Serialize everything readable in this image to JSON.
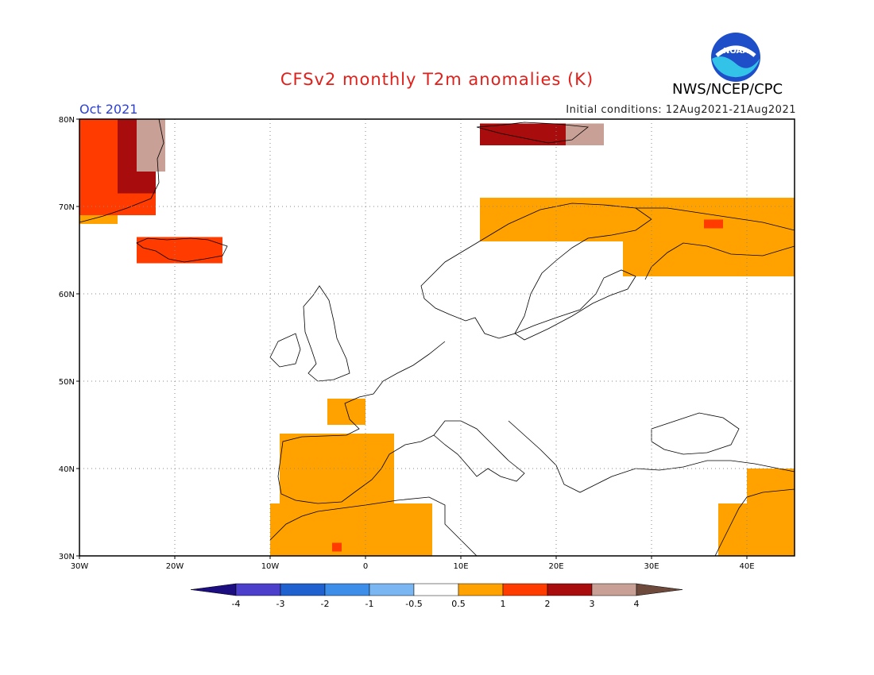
{
  "header": {
    "title": "CFSv2 monthly T2m anomalies (K)",
    "agency": "NWS/NCEP/CPC",
    "logo_text": "NOAA",
    "month": "Oct 2021",
    "initial_conditions": "Initial conditions: 12Aug2021-21Aug2021"
  },
  "map": {
    "lon_range": [
      -30,
      45
    ],
    "lat_range": [
      30,
      80
    ],
    "lon_ticks": [
      {
        "value": -30,
        "label": "30W"
      },
      {
        "value": -20,
        "label": "20W"
      },
      {
        "value": -10,
        "label": "10W"
      },
      {
        "value": 0,
        "label": "0"
      },
      {
        "value": 10,
        "label": "10E"
      },
      {
        "value": 20,
        "label": "20E"
      },
      {
        "value": 30,
        "label": "30E"
      },
      {
        "value": 40,
        "label": "40E"
      }
    ],
    "lat_ticks": [
      {
        "value": 30,
        "label": "30N"
      },
      {
        "value": 40,
        "label": "40N"
      },
      {
        "value": 50,
        "label": "50N"
      },
      {
        "value": 60,
        "label": "60N"
      },
      {
        "value": 70,
        "label": "70N"
      },
      {
        "value": 80,
        "label": "80N"
      }
    ],
    "grid": true,
    "anomaly_regions": [
      {
        "class": "0.5-1",
        "lon": [
          -30,
          -26
        ],
        "lat": [
          68,
          80
        ]
      },
      {
        "class": "1-2",
        "lon": [
          -30,
          -22
        ],
        "lat": [
          69,
          80
        ]
      },
      {
        "class": "2-3",
        "lon": [
          -26,
          -22
        ],
        "lat": [
          71.5,
          80
        ]
      },
      {
        "class": "3-4",
        "lon": [
          -24,
          -21
        ],
        "lat": [
          74,
          80
        ]
      },
      {
        "class": "1-2",
        "lon": [
          -24,
          -15
        ],
        "lat": [
          63.5,
          66.5
        ]
      },
      {
        "class": "2-3",
        "lon": [
          12,
          21
        ],
        "lat": [
          77,
          79.5
        ]
      },
      {
        "class": "3-4",
        "lon": [
          21,
          25
        ],
        "lat": [
          77,
          79.5
        ]
      },
      {
        "class": "0.5-1",
        "lon": [
          12,
          45
        ],
        "lat": [
          66,
          71
        ]
      },
      {
        "class": "0.5-1",
        "lon": [
          27,
          45
        ],
        "lat": [
          62,
          68
        ]
      },
      {
        "class": "1-2",
        "lon": [
          35.5,
          37.5
        ],
        "lat": [
          67.5,
          68.5
        ]
      },
      {
        "class": "0.5-1",
        "lon": [
          -4,
          0
        ],
        "lat": [
          45,
          48
        ]
      },
      {
        "class": "0.5-1",
        "lon": [
          -9,
          3
        ],
        "lat": [
          36,
          44
        ]
      },
      {
        "class": "0.5-1",
        "lon": [
          -10,
          7
        ],
        "lat": [
          30,
          36
        ]
      },
      {
        "class": "1-2",
        "lon": [
          -3.5,
          -2.5
        ],
        "lat": [
          30.5,
          31.5
        ]
      },
      {
        "class": "0.5-1",
        "lon": [
          37,
          45
        ],
        "lat": [
          30,
          36
        ]
      },
      {
        "class": "0.5-1",
        "lon": [
          40,
          45
        ],
        "lat": [
          36,
          40
        ]
      }
    ]
  },
  "colorbar": {
    "labels": [
      "-4",
      "-3",
      "-2",
      "-1",
      "-0.5",
      "0.5",
      "1",
      "2",
      "3",
      "4"
    ],
    "colors": {
      "below_-4": "#1c0d80",
      "-4_-3": "#4b3fcc",
      "-3_-2": "#1f62cf",
      "-2_-1": "#3d8ee8",
      "-1_-0.5": "#79b6f2",
      "-0.5_0.5": "#ffffff",
      "0.5_1": "#ffa200",
      "1_2": "#ff3b00",
      "2_3": "#a80c0c",
      "3_4": "#c8a096",
      "above_4": "#6e4a3c"
    }
  }
}
